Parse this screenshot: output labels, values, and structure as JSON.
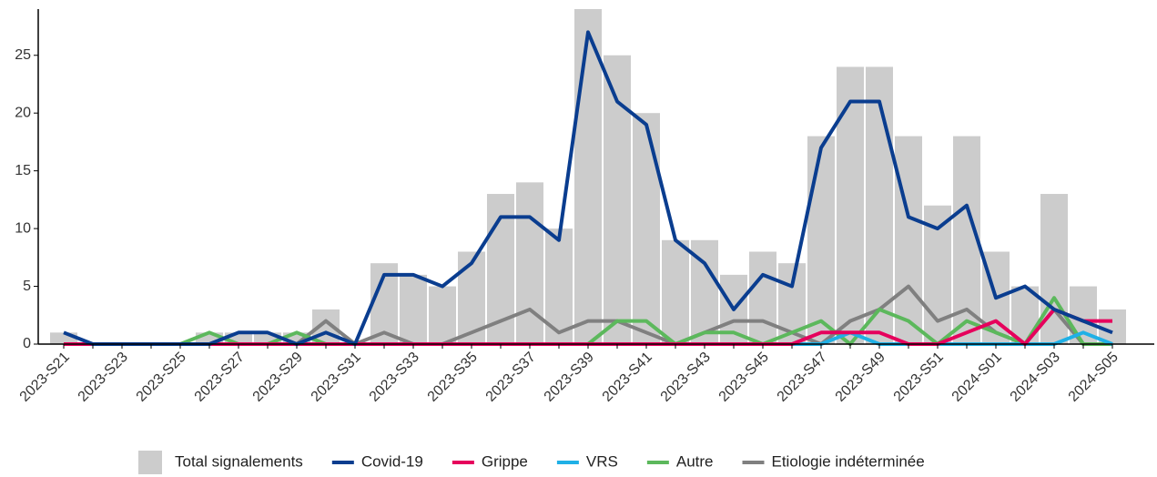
{
  "chart_data": {
    "type": "bar",
    "categories": [
      "2023-S21",
      null,
      "2023-S23",
      null,
      "2023-S25",
      null,
      "2023-S27",
      null,
      "2023-S29",
      null,
      "2023-S31",
      null,
      "2023-S33",
      null,
      "2023-S35",
      null,
      "2023-S37",
      null,
      "2023-S39",
      null,
      "2023-S41",
      null,
      "2023-S43",
      null,
      "2023-S45",
      null,
      "2023-S47",
      null,
      "2023-S49",
      null,
      "2023-S51",
      null,
      "2024-S01",
      null,
      "2024-S03",
      null,
      "2024-S05"
    ],
    "ylim": [
      0,
      29
    ],
    "yticks": [
      0,
      5,
      10,
      15,
      20,
      25
    ],
    "legend": "bottom",
    "series": [
      {
        "name": "Total signalements",
        "type": "bar",
        "color": "#cccccc",
        "values": [
          1,
          0,
          0,
          0,
          0,
          1,
          1,
          1,
          1,
          3,
          0,
          7,
          6,
          5,
          8,
          13,
          14,
          10,
          29,
          25,
          20,
          9,
          9,
          6,
          8,
          7,
          18,
          24,
          24,
          18,
          12,
          18,
          8,
          5,
          13,
          5,
          3
        ]
      },
      {
        "name": "Covid-19",
        "type": "line",
        "color": "#0a3d8f",
        "values": [
          1,
          0,
          0,
          0,
          0,
          0,
          1,
          1,
          0,
          1,
          0,
          6,
          6,
          5,
          7,
          11,
          11,
          9,
          27,
          21,
          19,
          9,
          7,
          3,
          6,
          5,
          17,
          21,
          21,
          11,
          10,
          12,
          4,
          5,
          3,
          2,
          1
        ]
      },
      {
        "name": "Grippe",
        "type": "line",
        "color": "#e6005c",
        "values": [
          0,
          0,
          0,
          0,
          0,
          0,
          0,
          0,
          0,
          0,
          0,
          0,
          0,
          0,
          0,
          0,
          0,
          0,
          0,
          0,
          0,
          0,
          0,
          0,
          0,
          0,
          1,
          1,
          1,
          0,
          0,
          1,
          2,
          0,
          3,
          2,
          2
        ]
      },
      {
        "name": "VRS",
        "type": "line",
        "color": "#1fb0e6",
        "values": [
          0,
          0,
          0,
          0,
          0,
          0,
          0,
          0,
          0,
          0,
          0,
          0,
          0,
          0,
          0,
          0,
          0,
          0,
          0,
          0,
          0,
          0,
          0,
          0,
          0,
          0,
          0,
          1,
          0,
          0,
          0,
          0,
          0,
          0,
          0,
          1,
          0
        ]
      },
      {
        "name": "Autre",
        "type": "line",
        "color": "#5cb85c",
        "values": [
          0,
          0,
          0,
          0,
          0,
          1,
          0,
          0,
          1,
          0,
          0,
          0,
          0,
          0,
          0,
          0,
          0,
          0,
          0,
          2,
          2,
          0,
          1,
          1,
          0,
          1,
          2,
          0,
          3,
          2,
          0,
          2,
          1,
          0,
          4,
          0,
          0
        ]
      },
      {
        "name": "Etiologie indéterminée",
        "type": "line",
        "color": "#808080",
        "values": [
          0,
          0,
          0,
          0,
          0,
          0,
          0,
          0,
          0,
          2,
          0,
          1,
          0,
          0,
          1,
          2,
          3,
          1,
          2,
          2,
          1,
          0,
          1,
          2,
          2,
          1,
          0,
          2,
          3,
          5,
          2,
          3,
          1,
          0,
          3,
          0,
          0
        ]
      }
    ]
  }
}
